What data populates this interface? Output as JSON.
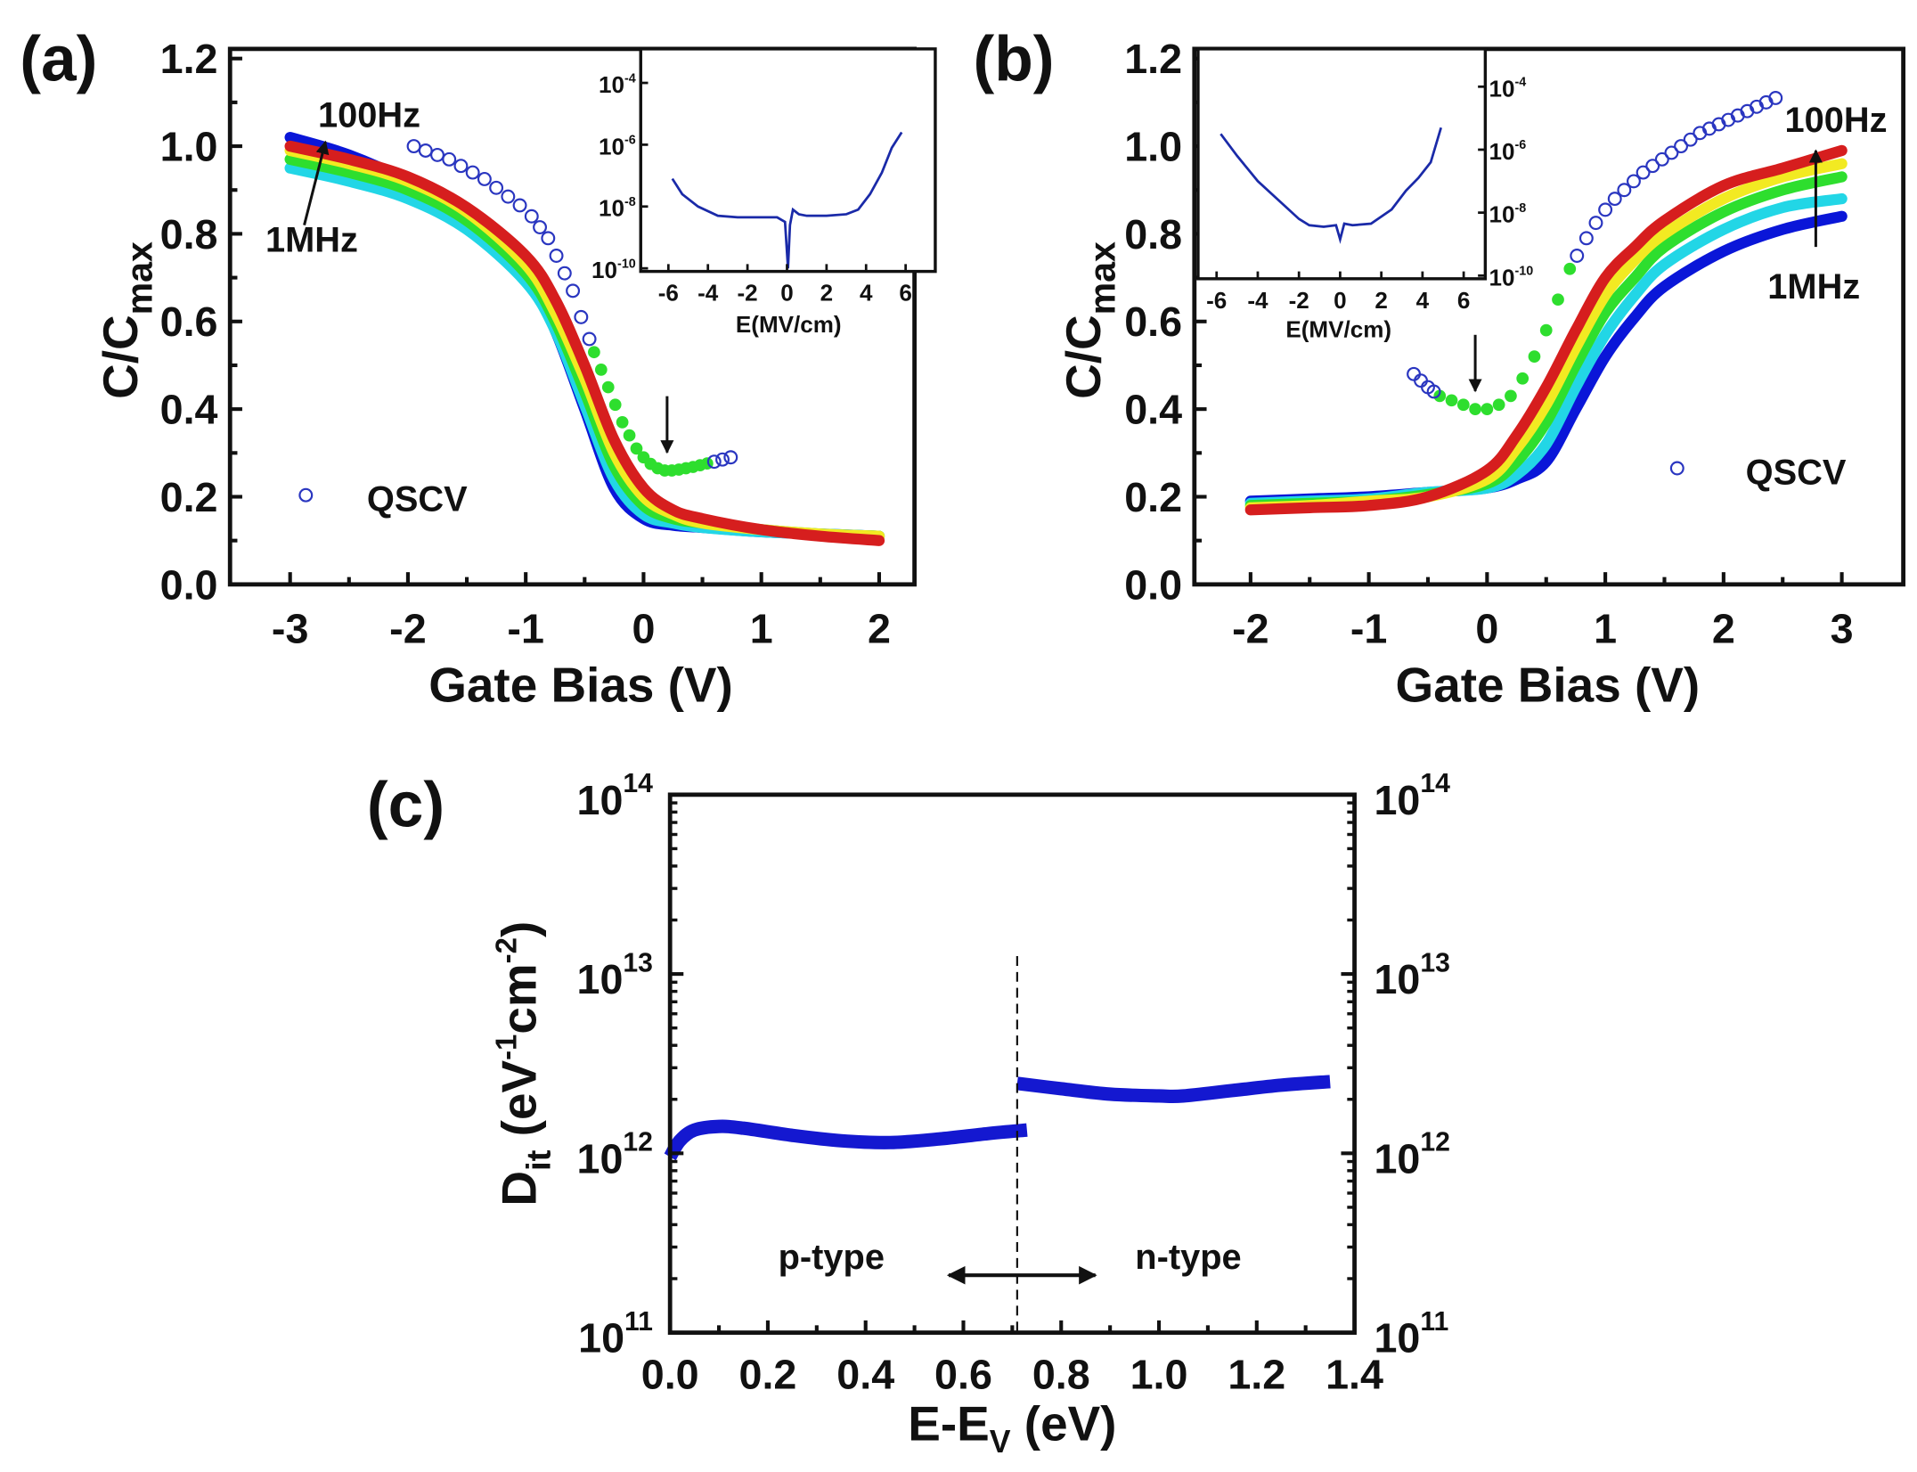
{
  "panels": {
    "a": {
      "label": "(a)",
      "xlabel": "Gate Bias (V)",
      "ylabel": "C/C",
      "ylabel_sub": "max",
      "high_freq": "100Hz",
      "low_freq": "1MHz",
      "legend": "QSCV",
      "inset_xlabel": "E(MV/cm)"
    },
    "b": {
      "label": "(b)",
      "xlabel": "Gate Bias (V)",
      "ylabel": "C/C",
      "ylabel_sub": "max",
      "high_freq": "100Hz",
      "low_freq": "1MHz",
      "legend": "QSCV",
      "inset_xlabel": "E(MV/cm)"
    },
    "c": {
      "label": "(c)",
      "xlabel": "E-E",
      "xlabel_sub": "V",
      "xlabel_tail": " (eV)",
      "ylabel": "D",
      "ylabel_sub": "it",
      "ylabel_unit1": " (eV",
      "ylabel_sup1": "-1",
      "ylabel_unit2": "cm",
      "ylabel_sup2": "-2",
      "ylabel_tail": ")",
      "p_type": "p-type",
      "n_type": "n-type"
    }
  },
  "chart_data": [
    {
      "panel": "a",
      "type": "line",
      "xlabel": "Gate Bias (V)",
      "ylabel": "C/Cmax",
      "xlim": [
        -3.51,
        2.3
      ],
      "ylim": [
        0,
        1.222
      ],
      "xticks": [
        "-3",
        "-2",
        "-1",
        "0",
        "1",
        "2"
      ],
      "xtick_values": [
        -3,
        -2,
        -1,
        0,
        1,
        2
      ],
      "yticks": [
        "0.0",
        "0.2",
        "0.4",
        "0.6",
        "0.8",
        "1.0",
        "1.2"
      ],
      "ytick_values": [
        0,
        0.2,
        0.4,
        0.6,
        0.8,
        1.0,
        1.2
      ],
      "x": [
        -3,
        -2.5,
        -2,
        -1.5,
        -1,
        -0.75,
        -0.5,
        -0.25,
        0,
        0.25,
        0.5,
        1,
        1.5,
        2
      ],
      "series": [
        {
          "color": "#0a16d8",
          "values": [
            1.02,
            0.98,
            0.92,
            0.84,
            0.71,
            0.58,
            0.4,
            0.22,
            0.15,
            0.135,
            0.13,
            0.12,
            0.115,
            0.11
          ]
        },
        {
          "color": "#22d6e6",
          "values": [
            0.95,
            0.92,
            0.88,
            0.81,
            0.69,
            0.58,
            0.41,
            0.24,
            0.16,
            0.14,
            0.13,
            0.12,
            0.115,
            0.11
          ]
        },
        {
          "color": "#2ede2e",
          "values": [
            0.97,
            0.94,
            0.9,
            0.83,
            0.71,
            0.6,
            0.44,
            0.27,
            0.18,
            0.15,
            0.14,
            0.125,
            0.115,
            0.11
          ]
        },
        {
          "color": "#f2ea22",
          "values": [
            0.99,
            0.96,
            0.92,
            0.85,
            0.73,
            0.62,
            0.47,
            0.3,
            0.2,
            0.16,
            0.14,
            0.125,
            0.115,
            0.11
          ]
        },
        {
          "color": "#d61e1e",
          "values": [
            1.0,
            0.97,
            0.93,
            0.86,
            0.75,
            0.65,
            0.5,
            0.33,
            0.22,
            0.17,
            0.15,
            0.125,
            0.11,
            0.1
          ]
        }
      ],
      "qscv": {
        "open_x": [
          -1.95,
          -1.85,
          -1.75,
          -1.65,
          -1.55,
          -1.45,
          -1.35,
          -1.25,
          -1.15,
          -1.05,
          -0.95,
          -0.88,
          -0.81,
          -0.74,
          -0.67,
          -0.6,
          -0.53,
          -0.46,
          0.6,
          0.67,
          0.74
        ],
        "open_y": [
          1.0,
          0.99,
          0.98,
          0.97,
          0.955,
          0.94,
          0.925,
          0.905,
          0.885,
          0.865,
          0.84,
          0.815,
          0.79,
          0.75,
          0.71,
          0.67,
          0.61,
          0.56,
          0.28,
          0.285,
          0.29
        ],
        "filled_x": [
          -0.42,
          -0.36,
          -0.3,
          -0.24,
          -0.18,
          -0.12,
          -0.06,
          0,
          0.06,
          0.12,
          0.18,
          0.24,
          0.3,
          0.36,
          0.42,
          0.48,
          0.54
        ],
        "filled_y": [
          0.53,
          0.49,
          0.45,
          0.41,
          0.37,
          0.34,
          0.31,
          0.29,
          0.275,
          0.265,
          0.26,
          0.26,
          0.262,
          0.265,
          0.268,
          0.272,
          0.276
        ]
      },
      "inset": {
        "xlabel": "E(MV/cm)",
        "xlim": [
          -7.4,
          7.5
        ],
        "log10_ylim": [
          -10.1,
          -2.9
        ],
        "xticks": [
          "-6",
          "-4",
          "-2",
          "0",
          "2",
          "4",
          "6"
        ],
        "xtick_values": [
          -6,
          -4,
          -2,
          0,
          2,
          4,
          6
        ],
        "ytick_exponents": [
          "-4",
          "-6",
          "-8",
          "-10"
        ],
        "ytick_values": [
          -4,
          -6,
          -8,
          -10
        ],
        "x": [
          -5.8,
          -5.3,
          -4.5,
          -3.5,
          -2.5,
          -1.5,
          -0.5,
          -0.1,
          0.05,
          0.15,
          0.3,
          0.6,
          1,
          2,
          3,
          3.6,
          4.2,
          4.8,
          5.3,
          5.8
        ],
        "log10_y": [
          -7.1,
          -7.6,
          -8.0,
          -8.3,
          -8.35,
          -8.35,
          -8.35,
          -8.5,
          -10.0,
          -8.6,
          -8.1,
          -8.25,
          -8.3,
          -8.3,
          -8.25,
          -8.1,
          -7.6,
          -6.9,
          -6.1,
          -5.6
        ]
      },
      "annotation_arrow_x": 0.2
    },
    {
      "panel": "b",
      "type": "line",
      "xlabel": "Gate Bias (V)",
      "ylabel": "C/Cmax",
      "xlim": [
        -2.475,
        3.52
      ],
      "ylim": [
        0,
        1.222
      ],
      "xticks": [
        "-2",
        "-1",
        "0",
        "1",
        "2",
        "3"
      ],
      "xtick_values": [
        -2,
        -1,
        0,
        1,
        2,
        3
      ],
      "yticks": [
        "0.0",
        "0.2",
        "0.4",
        "0.6",
        "0.8",
        "1.0",
        "1.2"
      ],
      "ytick_values": [
        0,
        0.2,
        0.4,
        0.6,
        0.8,
        1.0,
        1.2
      ],
      "x": [
        -2,
        -1.5,
        -1,
        -0.5,
        0,
        0.25,
        0.5,
        0.75,
        1,
        1.25,
        1.5,
        2,
        2.5,
        3
      ],
      "series": [
        {
          "color": "#0a16d8",
          "values": [
            0.19,
            0.195,
            0.2,
            0.21,
            0.22,
            0.24,
            0.28,
            0.4,
            0.52,
            0.61,
            0.68,
            0.76,
            0.81,
            0.84
          ]
        },
        {
          "color": "#22d6e6",
          "values": [
            0.185,
            0.19,
            0.195,
            0.21,
            0.22,
            0.25,
            0.32,
            0.45,
            0.57,
            0.66,
            0.73,
            0.81,
            0.86,
            0.88
          ]
        },
        {
          "color": "#2ede2e",
          "values": [
            0.18,
            0.185,
            0.19,
            0.205,
            0.23,
            0.28,
            0.37,
            0.5,
            0.62,
            0.7,
            0.77,
            0.85,
            0.9,
            0.93
          ]
        },
        {
          "color": "#f2ea22",
          "values": [
            0.175,
            0.18,
            0.19,
            0.2,
            0.24,
            0.31,
            0.41,
            0.54,
            0.66,
            0.74,
            0.8,
            0.88,
            0.93,
            0.96
          ]
        },
        {
          "color": "#d61e1e",
          "values": [
            0.17,
            0.175,
            0.18,
            0.2,
            0.26,
            0.34,
            0.45,
            0.58,
            0.7,
            0.77,
            0.83,
            0.91,
            0.95,
            0.99
          ]
        }
      ],
      "qscv": {
        "open_x": [
          -0.62,
          -0.56,
          -0.5,
          -0.45,
          0.76,
          0.84,
          0.92,
          1.0,
          1.08,
          1.16,
          1.24,
          1.32,
          1.4,
          1.48,
          1.56,
          1.64,
          1.72,
          1.8,
          1.88,
          1.96,
          2.04,
          2.12,
          2.2,
          2.28,
          2.36,
          2.44
        ],
        "open_y": [
          0.48,
          0.465,
          0.45,
          0.44,
          0.75,
          0.79,
          0.825,
          0.855,
          0.88,
          0.9,
          0.92,
          0.94,
          0.955,
          0.97,
          0.985,
          1.0,
          1.015,
          1.03,
          1.04,
          1.05,
          1.06,
          1.07,
          1.08,
          1.09,
          1.1,
          1.11
        ],
        "filled_x": [
          -0.4,
          -0.3,
          -0.2,
          -0.1,
          0,
          0.1,
          0.2,
          0.3,
          0.4,
          0.5,
          0.6,
          0.7
        ],
        "filled_y": [
          0.43,
          0.42,
          0.41,
          0.4,
          0.4,
          0.41,
          0.43,
          0.47,
          0.52,
          0.58,
          0.65,
          0.72
        ]
      },
      "inset": {
        "xlabel": "E(MV/cm)",
        "xlim": [
          -6.9,
          7.05
        ],
        "log10_ylim": [
          -10.1,
          -2.8
        ],
        "xticks": [
          "-6",
          "-4",
          "-2",
          "0",
          "2",
          "4",
          "6"
        ],
        "xtick_values": [
          -6,
          -4,
          -2,
          0,
          2,
          4,
          6
        ],
        "ytick_exponents": [
          "-4",
          "-6",
          "-8",
          "-10"
        ],
        "ytick_values": [
          -4,
          -6,
          -8,
          -10
        ],
        "x": [
          -5.8,
          -5,
          -4,
          -3,
          -2,
          -1.5,
          -0.8,
          -0.2,
          0,
          0.2,
          0.6,
          1.5,
          2.5,
          3.2,
          3.8,
          4.4,
          4.9
        ],
        "log10_y": [
          -5.5,
          -6.2,
          -7.0,
          -7.6,
          -8.2,
          -8.4,
          -8.45,
          -8.4,
          -8.85,
          -8.35,
          -8.4,
          -8.35,
          -7.9,
          -7.3,
          -6.9,
          -6.4,
          -5.3
        ]
      },
      "annotation_arrow_x": -0.1
    },
    {
      "panel": "c",
      "type": "line",
      "xlabel": "E-EV (eV)",
      "ylabel": "Dit (eV-1cm-2)",
      "xlim": [
        0,
        1.4
      ],
      "log10_ylim": [
        11,
        14
      ],
      "xticks": [
        "0.0",
        "0.2",
        "0.4",
        "0.6",
        "0.8",
        "1.0",
        "1.2",
        "1.4"
      ],
      "xtick_values": [
        0,
        0.2,
        0.4,
        0.6,
        0.8,
        1.0,
        1.2,
        1.4
      ],
      "ytick_exponents": [
        "11",
        "12",
        "13",
        "14"
      ],
      "ytick_values": [
        11,
        12,
        13,
        14
      ],
      "series": [
        {
          "name": "p-type",
          "color": "#1418d0",
          "x": [
            0.0,
            0.02,
            0.05,
            0.1,
            0.15,
            0.25,
            0.35,
            0.45,
            0.55,
            0.65,
            0.73
          ],
          "log10_y": [
            11.98,
            12.07,
            12.13,
            12.15,
            12.14,
            12.1,
            12.07,
            12.06,
            12.08,
            12.11,
            12.13
          ]
        },
        {
          "name": "n-type",
          "color": "#1418d0",
          "x": [
            0.71,
            0.8,
            0.9,
            1.0,
            1.05,
            1.15,
            1.25,
            1.35
          ],
          "log10_y": [
            12.39,
            12.36,
            12.33,
            12.32,
            12.32,
            12.35,
            12.38,
            12.4
          ]
        }
      ],
      "divider_x": 0.71,
      "double_arrow_x": [
        0.57,
        0.87
      ]
    }
  ]
}
